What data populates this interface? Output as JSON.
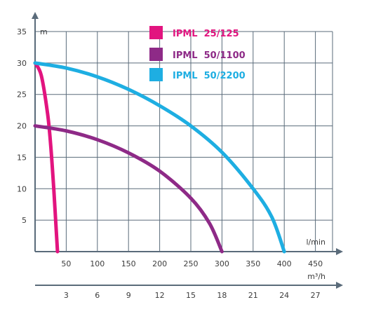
{
  "chart_data": {
    "type": "line",
    "x_axes": [
      {
        "unit": "l/min",
        "range": [
          0,
          480
        ],
        "tick_labels": [
          "50",
          "100",
          "150",
          "200",
          "250",
          "300",
          "350",
          "400",
          "450"
        ],
        "tick_values": [
          50,
          100,
          150,
          200,
          250,
          300,
          350,
          400,
          450
        ]
      },
      {
        "unit": "m³/h",
        "tick_labels": [
          "3",
          "6",
          "9",
          "12",
          "15",
          "18",
          "21",
          "24",
          "27"
        ],
        "tick_values": [
          3,
          6,
          9,
          12,
          15,
          18,
          21,
          24,
          27
        ]
      }
    ],
    "y_axis": {
      "unit": "m",
      "range": [
        0,
        35
      ],
      "tick_labels": [
        "5",
        "10",
        "15",
        "20",
        "25",
        "30",
        "35"
      ],
      "tick_values": [
        5,
        10,
        15,
        20,
        25,
        30,
        35
      ]
    },
    "grid": true,
    "legend_position": "top",
    "series": [
      {
        "name": "IPML  25/125",
        "color": "#e2147f",
        "x": [
          0,
          10,
          20,
          25,
          30,
          33,
          36
        ],
        "y": [
          30,
          28,
          22,
          17,
          10,
          5,
          0
        ]
      },
      {
        "name": "IPML  50/1100",
        "color": "#8e2a87",
        "x": [
          0,
          50,
          100,
          150,
          200,
          250,
          280,
          300
        ],
        "y": [
          20,
          19.2,
          17.8,
          15.7,
          12.8,
          8.5,
          4.5,
          0
        ]
      },
      {
        "name": "IPML  50/2200",
        "color": "#1eaee2",
        "x": [
          0,
          50,
          100,
          150,
          200,
          250,
          300,
          350,
          380,
          400
        ],
        "y": [
          30,
          29.2,
          27.8,
          25.8,
          23.2,
          20,
          15.8,
          10,
          5.5,
          0
        ]
      }
    ]
  }
}
